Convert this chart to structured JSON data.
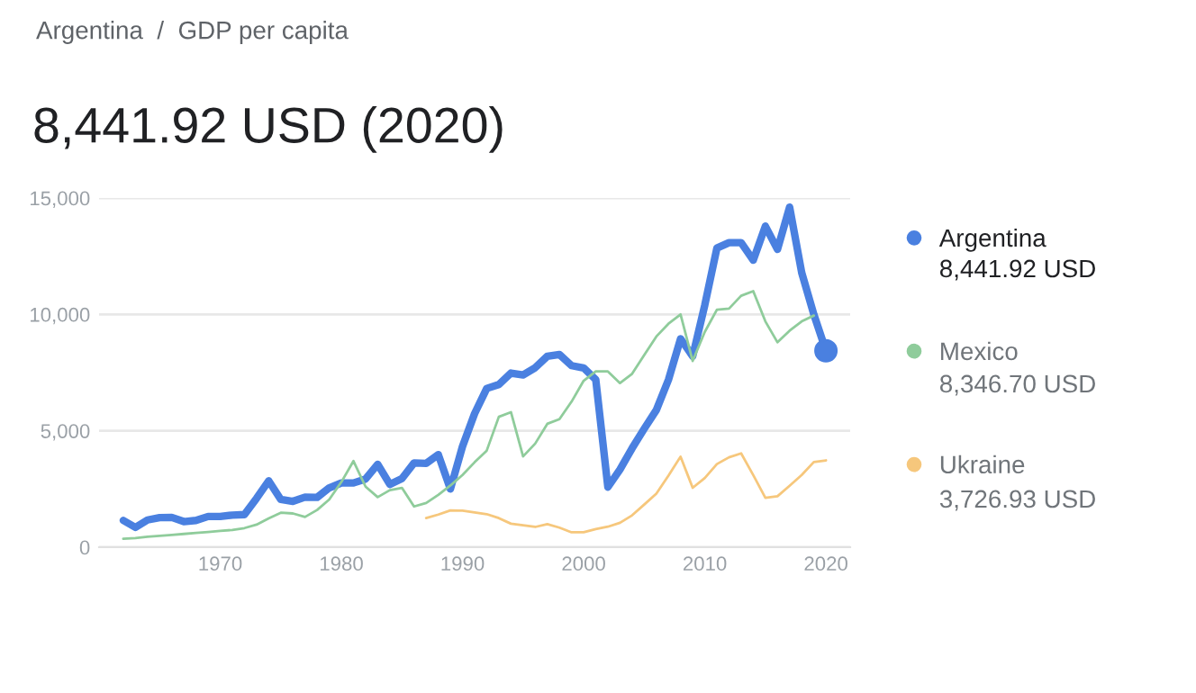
{
  "chart_data": {
    "type": "line",
    "title": "Argentina  /  GDP per capita",
    "subtitle": "8,441.92 USD (2020)",
    "annotations": [
      "8,441.92 USD",
      "8,346.70 USD",
      "3,726.93 USD"
    ],
    "xlim": [
      1960,
      2022
    ],
    "xticks": [
      1970,
      1980,
      1990,
      2000,
      2010,
      2020
    ],
    "ylim": [
      0,
      15000
    ],
    "yticks": [
      {
        "value": 0,
        "label": "0"
      },
      {
        "value": 5000,
        "label": "5,000"
      },
      {
        "value": 10000,
        "label": "10,000"
      },
      {
        "value": 15000,
        "label": "15,000"
      }
    ],
    "grid": "y",
    "legend": "right",
    "series": [
      {
        "name": "Argentina",
        "color": "#4a80e0",
        "x": [
          1962,
          1963,
          1964,
          1965,
          1966,
          1967,
          1968,
          1969,
          1970,
          1971,
          1972,
          1973,
          1974,
          1975,
          1976,
          1977,
          1978,
          1979,
          1980,
          1981,
          1982,
          1983,
          1984,
          1985,
          1986,
          1987,
          1988,
          1989,
          1990,
          1991,
          1992,
          1993,
          1994,
          1995,
          1996,
          1997,
          1998,
          1999,
          2000,
          2001,
          2002,
          2003,
          2004,
          2005,
          2006,
          2007,
          2008,
          2009,
          2010,
          2011,
          2012,
          2013,
          2014,
          2015,
          2016,
          2017,
          2018,
          2019,
          2020
        ],
        "values": [
          1150,
          850,
          1170,
          1270,
          1280,
          1100,
          1150,
          1320,
          1320,
          1380,
          1400,
          2100,
          2850,
          2050,
          1970,
          2150,
          2140,
          2550,
          2760,
          2760,
          2930,
          3560,
          2700,
          2950,
          3620,
          3600,
          3980,
          2500,
          4330,
          5740,
          6820,
          6990,
          7480,
          7400,
          7710,
          8200,
          8280,
          7800,
          7700,
          7200,
          2580,
          3340,
          4250,
          5090,
          5890,
          7190,
          8950,
          8200,
          10400,
          12850,
          13080,
          13080,
          12330,
          13790,
          12790,
          14610,
          11790,
          10000,
          8440
        ]
      },
      {
        "name": "Mexico",
        "color": "#8fcc9b",
        "x": [
          1962,
          1963,
          1964,
          1965,
          1966,
          1967,
          1968,
          1969,
          1970,
          1971,
          1972,
          1973,
          1974,
          1975,
          1976,
          1977,
          1978,
          1979,
          1980,
          1981,
          1982,
          1983,
          1984,
          1985,
          1986,
          1987,
          1988,
          1989,
          1990,
          1991,
          1992,
          1993,
          1994,
          1995,
          1996,
          1997,
          1998,
          1999,
          2000,
          2001,
          2002,
          2003,
          2004,
          2005,
          2006,
          2007,
          2008,
          2009,
          2010,
          2011,
          2012,
          2013,
          2014,
          2015,
          2016,
          2017,
          2018,
          2019
        ],
        "values": [
          360,
          390,
          450,
          490,
          530,
          570,
          610,
          650,
          700,
          740,
          820,
          970,
          1240,
          1480,
          1450,
          1300,
          1600,
          2050,
          2800,
          3700,
          2600,
          2150,
          2450,
          2550,
          1750,
          1900,
          2250,
          2650,
          3100,
          3650,
          4150,
          5600,
          5800,
          3900,
          4450,
          5300,
          5500,
          6250,
          7150,
          7550,
          7550,
          7050,
          7450,
          8250,
          9050,
          9600,
          10000,
          8000,
          9250,
          10200,
          10250,
          10800,
          11000,
          9700,
          8800,
          9300,
          9700,
          9950
        ]
      },
      {
        "name": "Ukraine",
        "color": "#f6c77c",
        "x": [
          1987,
          1988,
          1989,
          1990,
          1991,
          1992,
          1993,
          1994,
          1995,
          1996,
          1997,
          1998,
          1999,
          2000,
          2001,
          2002,
          2003,
          2004,
          2005,
          2006,
          2007,
          2008,
          2009,
          2010,
          2011,
          2012,
          2013,
          2014,
          2015,
          2016,
          2017,
          2018,
          2019,
          2020
        ],
        "values": [
          1250,
          1400,
          1580,
          1570,
          1490,
          1420,
          1250,
          1010,
          940,
          870,
          990,
          840,
          640,
          640,
          780,
          880,
          1050,
          1370,
          1830,
          2300,
          3070,
          3890,
          2550,
          2970,
          3570,
          3860,
          4030,
          3100,
          2120,
          2190,
          2640,
          3100,
          3660,
          3730
        ]
      },
      {
        "type": "scatter",
        "color": "#4a80e0",
        "x": [
          2020
        ],
        "values": [
          8440
        ]
      }
    ]
  }
}
